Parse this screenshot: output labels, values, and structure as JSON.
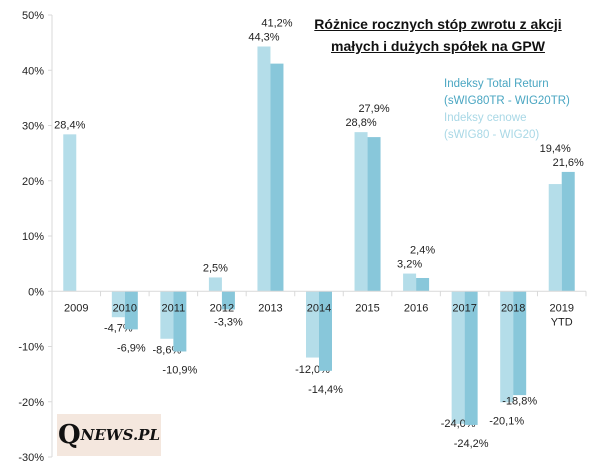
{
  "title_line1": "Różnice rocznych stóp zwrotu z akcji",
  "title_line2": "małych i dużych spółek na GPW",
  "legend": {
    "tr_line1": "Indeksy Total Return",
    "tr_line2": "(sWIG80TR - WIG20TR)",
    "price_line1": "Indeksy cenowe",
    "price_line2": "(sWIG80 - WIG20)"
  },
  "logo": {
    "q": "Q",
    "rest": "NEWS.PL"
  },
  "colors": {
    "price": "#b4dde9",
    "tr": "#88c7da",
    "axis": "#d9d9d9"
  },
  "chart_data": {
    "type": "bar",
    "title": "Różnice rocznych stóp zwrotu z akcji małych i dużych spółek na GPW",
    "categories": [
      "2009",
      "2010",
      "2011",
      "2012",
      "2013",
      "2014",
      "2015",
      "2016",
      "2017",
      "2018",
      "2019 YTD"
    ],
    "category_lines": [
      [
        "2009"
      ],
      [
        "2010"
      ],
      [
        "2011"
      ],
      [
        "2012"
      ],
      [
        "2013"
      ],
      [
        "2014"
      ],
      [
        "2015"
      ],
      [
        "2016"
      ],
      [
        "2017"
      ],
      [
        "2018"
      ],
      [
        "2019",
        "YTD"
      ]
    ],
    "series": [
      {
        "name": "Indeksy cenowe (sWIG80 - WIG20)",
        "values": [
          28.4,
          -4.7,
          -8.6,
          2.5,
          44.3,
          -12.0,
          28.8,
          3.2,
          -24.0,
          -20.1,
          19.4
        ],
        "labels": [
          "28,4%",
          "-4,7%",
          "-8,6%",
          "2,5%",
          "44,3%",
          "-12,0%",
          "28,8%",
          "3,2%",
          "-24,0%",
          "-20,1%",
          "19,4%"
        ]
      },
      {
        "name": "Indeksy Total Return (sWIG80TR - WIG20TR)",
        "values": [
          null,
          -6.9,
          -10.9,
          -3.3,
          41.2,
          -14.4,
          27.9,
          2.4,
          -24.2,
          -18.8,
          21.6
        ],
        "labels": [
          "",
          "-6,9%",
          "-10,9%",
          "-3,3%",
          "41,2%",
          "-14,4%",
          "27,9%",
          "2,4%",
          "-24,2%",
          "-18,8%",
          "21,6%"
        ]
      }
    ],
    "ylim": [
      -30,
      50
    ],
    "yticks": [
      -30,
      -20,
      -10,
      0,
      10,
      20,
      30,
      40,
      50
    ],
    "ytick_labels": [
      "-30%",
      "-20%",
      "-10%",
      "0%",
      "10%",
      "20%",
      "30%",
      "40%",
      "50%"
    ],
    "legend_position": "right",
    "grid": false
  }
}
